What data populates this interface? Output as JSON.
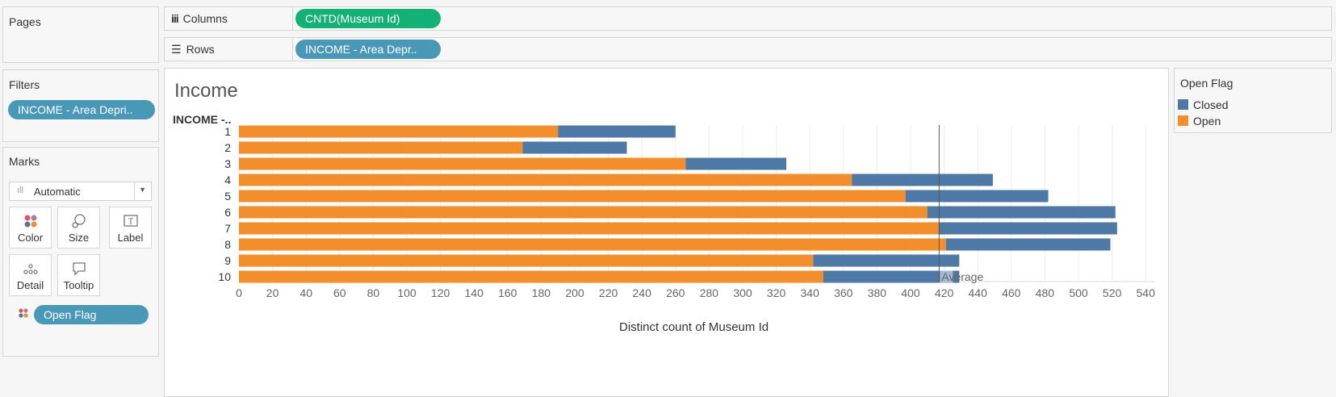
{
  "pages": {
    "title": "Pages"
  },
  "columns_shelf": {
    "label": "Columns",
    "pill": "CNTD(Museum Id)"
  },
  "rows_shelf": {
    "label": "Rows",
    "pill": "INCOME - Area Depr.."
  },
  "filters": {
    "title": "Filters",
    "pill": "INCOME - Area Depri.."
  },
  "marks": {
    "title": "Marks",
    "type": "Automatic",
    "cards": [
      "Color",
      "Size",
      "Label",
      "Detail",
      "Tooltip"
    ],
    "field_pill": "Open Flag"
  },
  "legend": {
    "title": "Open Flag",
    "items": [
      {
        "label": "Closed",
        "color": "#4e79a7"
      },
      {
        "label": "Open",
        "color": "#f28e2b"
      }
    ]
  },
  "chart_data": {
    "type": "bar",
    "stacked": true,
    "orientation": "horizontal",
    "title": "Income",
    "row_header": "INCOME -..",
    "categories": [
      "1",
      "2",
      "3",
      "4",
      "5",
      "6",
      "7",
      "8",
      "9",
      "10"
    ],
    "series": [
      {
        "name": "Open",
        "color": "#f28e2b",
        "values": [
          190,
          169,
          266,
          365,
          397,
          410,
          417,
          421,
          342,
          348
        ]
      },
      {
        "name": "Closed",
        "color": "#4e79a7",
        "values": [
          70,
          62,
          60,
          84,
          85,
          112,
          106,
          98,
          87,
          81
        ]
      }
    ],
    "xlabel": "Distinct count of Museum Id",
    "xlim": [
      0,
      550
    ],
    "xticks": [
      0,
      20,
      40,
      60,
      80,
      100,
      120,
      140,
      160,
      180,
      200,
      220,
      240,
      260,
      280,
      300,
      320,
      340,
      360,
      380,
      400,
      420,
      440,
      460,
      480,
      500,
      520,
      540
    ],
    "reference_line": {
      "label": "Average",
      "value": 417
    },
    "grid": true
  }
}
